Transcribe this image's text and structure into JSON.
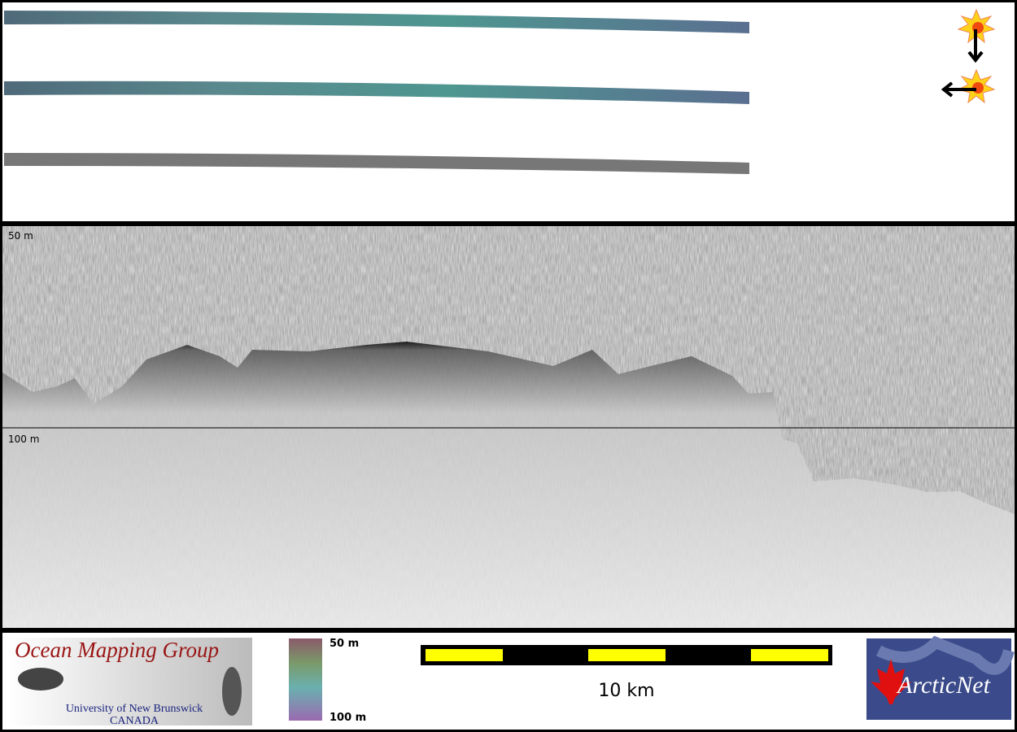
{
  "profile": {
    "depth_labels": [
      "50 m",
      "100 m"
    ]
  },
  "footer": {
    "organization": "Ocean Mapping Group",
    "university": "University of New Brunswick",
    "country": "CANADA",
    "colorbar_labels": [
      "50 m",
      "100 m"
    ],
    "scale_bar": "10 km",
    "partner": "ArcticNet"
  }
}
